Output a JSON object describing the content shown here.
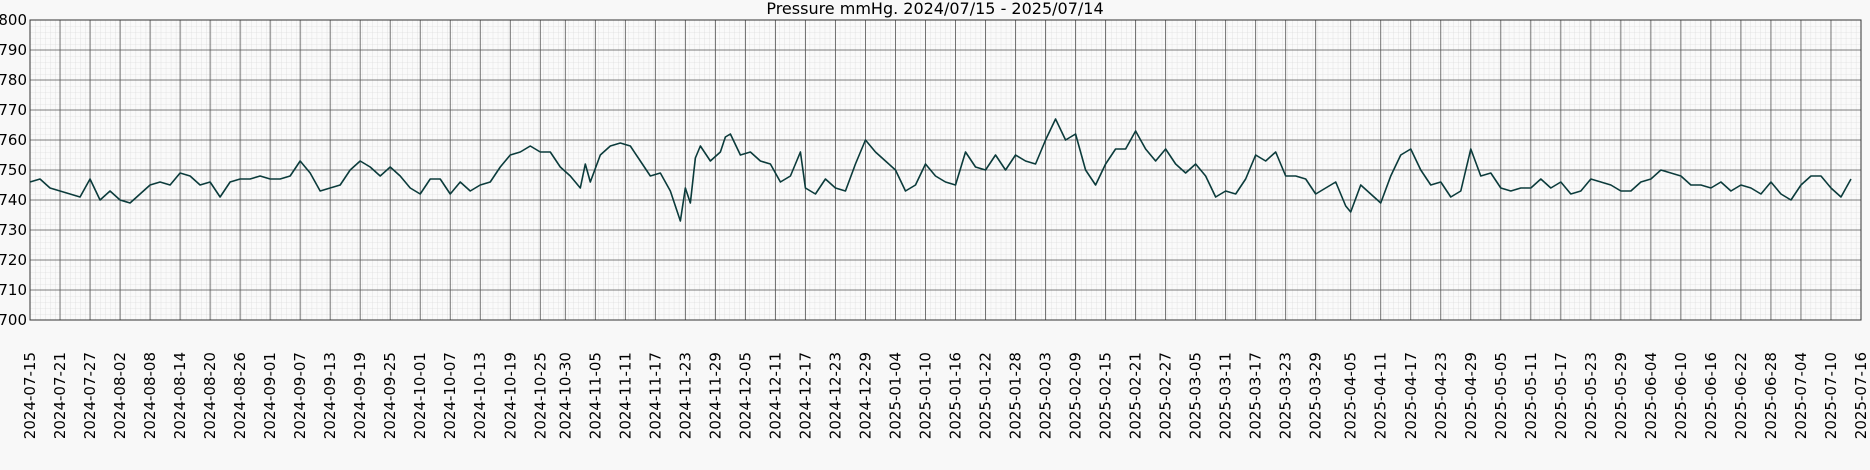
{
  "chart_data": {
    "type": "line",
    "title": "Pressure mmHg. 2024/07/15 - 2025/07/14",
    "ylim": [
      700,
      800
    ],
    "yticks": [
      700,
      710,
      720,
      730,
      740,
      750,
      760,
      770,
      780,
      790,
      800
    ],
    "xlim": [
      "2024-07-15",
      "2025-07-16"
    ],
    "xticks": [
      "2024-07-15",
      "2024-07-21",
      "2024-07-27",
      "2024-08-02",
      "2024-08-08",
      "2024-08-14",
      "2024-08-20",
      "2024-08-26",
      "2024-09-01",
      "2024-09-07",
      "2024-09-13",
      "2024-09-19",
      "2024-09-25",
      "2024-10-01",
      "2024-10-07",
      "2024-10-13",
      "2024-10-19",
      "2024-10-25",
      "2024-10-30",
      "2024-11-05",
      "2024-11-11",
      "2024-11-17",
      "2024-11-23",
      "2024-11-29",
      "2024-12-05",
      "2024-12-11",
      "2024-12-17",
      "2024-12-23",
      "2024-12-29",
      "2025-01-04",
      "2025-01-10",
      "2025-01-16",
      "2025-01-22",
      "2025-01-28",
      "2025-02-03",
      "2025-02-09",
      "2025-02-15",
      "2025-02-21",
      "2025-02-27",
      "2025-03-05",
      "2025-03-11",
      "2025-03-17",
      "2025-03-23",
      "2025-03-29",
      "2025-04-05",
      "2025-04-11",
      "2025-04-17",
      "2025-04-23",
      "2025-04-29",
      "2025-05-05",
      "2025-05-11",
      "2025-05-17",
      "2025-05-23",
      "2025-05-29",
      "2025-06-04",
      "2025-06-10",
      "2025-06-16",
      "2025-06-22",
      "2025-06-28",
      "2025-07-04",
      "2025-07-10",
      "2025-07-16"
    ],
    "grid": true,
    "color": "#0b3b3b",
    "x": [
      "2024-07-15",
      "2024-07-17",
      "2024-07-19",
      "2024-07-21",
      "2024-07-23",
      "2024-07-25",
      "2024-07-27",
      "2024-07-29",
      "2024-07-31",
      "2024-08-02",
      "2024-08-04",
      "2024-08-06",
      "2024-08-08",
      "2024-08-10",
      "2024-08-12",
      "2024-08-14",
      "2024-08-16",
      "2024-08-18",
      "2024-08-20",
      "2024-08-22",
      "2024-08-24",
      "2024-08-26",
      "2024-08-28",
      "2024-08-30",
      "2024-09-01",
      "2024-09-03",
      "2024-09-05",
      "2024-09-07",
      "2024-09-09",
      "2024-09-11",
      "2024-09-13",
      "2024-09-15",
      "2024-09-17",
      "2024-09-19",
      "2024-09-21",
      "2024-09-23",
      "2024-09-25",
      "2024-09-27",
      "2024-09-29",
      "2024-10-01",
      "2024-10-03",
      "2024-10-05",
      "2024-10-07",
      "2024-10-09",
      "2024-10-11",
      "2024-10-13",
      "2024-10-15",
      "2024-10-17",
      "2024-10-19",
      "2024-10-21",
      "2024-10-23",
      "2024-10-25",
      "2024-10-27",
      "2024-10-29",
      "2024-10-31",
      "2024-11-02",
      "2024-11-03",
      "2024-11-04",
      "2024-11-06",
      "2024-11-08",
      "2024-11-10",
      "2024-11-12",
      "2024-11-14",
      "2024-11-16",
      "2024-11-18",
      "2024-11-20",
      "2024-11-22",
      "2024-11-23",
      "2024-11-24",
      "2024-11-25",
      "2024-11-26",
      "2024-11-28",
      "2024-11-30",
      "2024-12-01",
      "2024-12-02",
      "2024-12-04",
      "2024-12-06",
      "2024-12-08",
      "2024-12-10",
      "2024-12-12",
      "2024-12-14",
      "2024-12-16",
      "2024-12-17",
      "2024-12-19",
      "2024-12-21",
      "2024-12-23",
      "2024-12-25",
      "2024-12-27",
      "2024-12-29",
      "2024-12-31",
      "2025-01-02",
      "2025-01-04",
      "2025-01-06",
      "2025-01-08",
      "2025-01-10",
      "2025-01-12",
      "2025-01-14",
      "2025-01-16",
      "2025-01-18",
      "2025-01-20",
      "2025-01-22",
      "2025-01-24",
      "2025-01-26",
      "2025-01-28",
      "2025-01-30",
      "2025-02-01",
      "2025-02-03",
      "2025-02-05",
      "2025-02-07",
      "2025-02-09",
      "2025-02-11",
      "2025-02-13",
      "2025-02-15",
      "2025-02-17",
      "2025-02-19",
      "2025-02-21",
      "2025-02-23",
      "2025-02-25",
      "2025-02-27",
      "2025-03-01",
      "2025-03-03",
      "2025-03-05",
      "2025-03-07",
      "2025-03-09",
      "2025-03-11",
      "2025-03-13",
      "2025-03-15",
      "2025-03-17",
      "2025-03-19",
      "2025-03-21",
      "2025-03-23",
      "2025-03-25",
      "2025-03-27",
      "2025-03-29",
      "2025-03-31",
      "2025-04-02",
      "2025-04-04",
      "2025-04-05",
      "2025-04-07",
      "2025-04-09",
      "2025-04-11",
      "2025-04-13",
      "2025-04-15",
      "2025-04-17",
      "2025-04-19",
      "2025-04-21",
      "2025-04-23",
      "2025-04-25",
      "2025-04-27",
      "2025-04-29",
      "2025-05-01",
      "2025-05-03",
      "2025-05-05",
      "2025-05-07",
      "2025-05-09",
      "2025-05-11",
      "2025-05-13",
      "2025-05-15",
      "2025-05-17",
      "2025-05-19",
      "2025-05-21",
      "2025-05-23",
      "2025-05-25",
      "2025-05-27",
      "2025-05-29",
      "2025-05-31",
      "2025-06-02",
      "2025-06-04",
      "2025-06-06",
      "2025-06-08",
      "2025-06-10",
      "2025-06-12",
      "2025-06-14",
      "2025-06-16",
      "2025-06-18",
      "2025-06-20",
      "2025-06-22",
      "2025-06-24",
      "2025-06-26",
      "2025-06-28",
      "2025-06-30",
      "2025-07-02",
      "2025-07-04",
      "2025-07-06",
      "2025-07-08",
      "2025-07-10",
      "2025-07-12",
      "2025-07-14"
    ],
    "values": [
      746,
      747,
      744,
      743,
      742,
      741,
      747,
      740,
      743,
      740,
      739,
      742,
      745,
      746,
      745,
      749,
      748,
      745,
      746,
      741,
      746,
      747,
      747,
      748,
      747,
      747,
      748,
      753,
      749,
      743,
      744,
      745,
      750,
      753,
      751,
      748,
      751,
      748,
      744,
      742,
      747,
      747,
      742,
      746,
      743,
      745,
      746,
      751,
      755,
      756,
      758,
      756,
      756,
      751,
      748,
      744,
      752,
      746,
      755,
      758,
      759,
      758,
      753,
      748,
      749,
      743,
      733,
      744,
      739,
      754,
      758,
      753,
      756,
      761,
      762,
      755,
      756,
      753,
      752,
      746,
      748,
      756,
      744,
      742,
      747,
      744,
      743,
      752,
      760,
      756,
      753,
      750,
      743,
      745,
      752,
      748,
      746,
      745,
      756,
      751,
      750,
      755,
      750,
      755,
      753,
      752,
      760,
      767,
      760,
      762,
      750,
      745,
      752,
      757,
      757,
      763,
      757,
      753,
      757,
      752,
      749,
      752,
      748,
      741,
      743,
      742,
      747,
      755,
      753,
      756,
      748,
      748,
      747,
      742,
      744,
      746,
      738,
      736,
      745,
      742,
      739,
      748,
      755,
      757,
      750,
      745,
      746,
      741,
      743,
      757,
      748,
      749,
      744,
      743,
      744,
      744,
      747,
      744,
      746,
      742,
      743,
      747,
      746,
      745,
      743,
      743,
      746,
      747,
      750,
      749,
      748,
      745,
      745,
      744,
      746,
      743,
      745,
      744,
      742,
      746,
      742,
      740,
      745,
      748,
      748,
      744,
      741,
      747
    ]
  }
}
